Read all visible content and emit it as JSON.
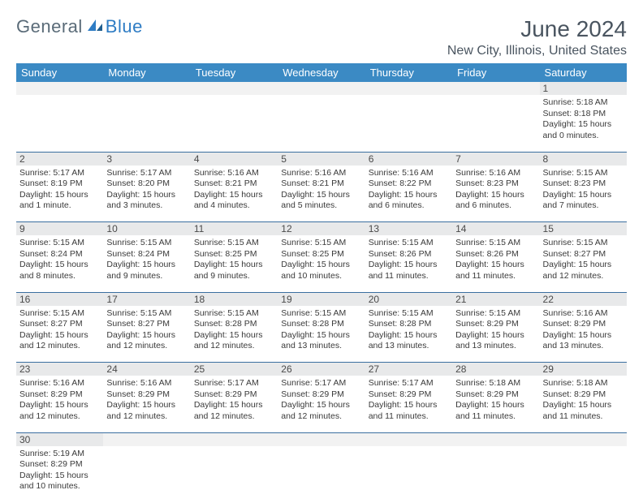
{
  "logo": {
    "text1": "General",
    "text2": "Blue"
  },
  "title": "June 2024",
  "location": "New City, Illinois, United States",
  "colors": {
    "header_bg": "#3b8ac4",
    "header_text": "#ffffff",
    "row_divider": "#3b6fa0",
    "daynum_bg": "#e8e9ea",
    "body_text": "#3a3a3a",
    "title_text": "#4a5560",
    "logo_gray": "#5a6b78",
    "logo_blue": "#2e7cc4"
  },
  "day_headers": [
    "Sunday",
    "Monday",
    "Tuesday",
    "Wednesday",
    "Thursday",
    "Friday",
    "Saturday"
  ],
  "weeks": [
    [
      null,
      null,
      null,
      null,
      null,
      null,
      {
        "n": "1",
        "sr": "Sunrise: 5:18 AM",
        "ss": "Sunset: 8:18 PM",
        "d1": "Daylight: 15 hours",
        "d2": "and 0 minutes."
      }
    ],
    [
      {
        "n": "2",
        "sr": "Sunrise: 5:17 AM",
        "ss": "Sunset: 8:19 PM",
        "d1": "Daylight: 15 hours",
        "d2": "and 1 minute."
      },
      {
        "n": "3",
        "sr": "Sunrise: 5:17 AM",
        "ss": "Sunset: 8:20 PM",
        "d1": "Daylight: 15 hours",
        "d2": "and 3 minutes."
      },
      {
        "n": "4",
        "sr": "Sunrise: 5:16 AM",
        "ss": "Sunset: 8:21 PM",
        "d1": "Daylight: 15 hours",
        "d2": "and 4 minutes."
      },
      {
        "n": "5",
        "sr": "Sunrise: 5:16 AM",
        "ss": "Sunset: 8:21 PM",
        "d1": "Daylight: 15 hours",
        "d2": "and 5 minutes."
      },
      {
        "n": "6",
        "sr": "Sunrise: 5:16 AM",
        "ss": "Sunset: 8:22 PM",
        "d1": "Daylight: 15 hours",
        "d2": "and 6 minutes."
      },
      {
        "n": "7",
        "sr": "Sunrise: 5:16 AM",
        "ss": "Sunset: 8:23 PM",
        "d1": "Daylight: 15 hours",
        "d2": "and 6 minutes."
      },
      {
        "n": "8",
        "sr": "Sunrise: 5:15 AM",
        "ss": "Sunset: 8:23 PM",
        "d1": "Daylight: 15 hours",
        "d2": "and 7 minutes."
      }
    ],
    [
      {
        "n": "9",
        "sr": "Sunrise: 5:15 AM",
        "ss": "Sunset: 8:24 PM",
        "d1": "Daylight: 15 hours",
        "d2": "and 8 minutes."
      },
      {
        "n": "10",
        "sr": "Sunrise: 5:15 AM",
        "ss": "Sunset: 8:24 PM",
        "d1": "Daylight: 15 hours",
        "d2": "and 9 minutes."
      },
      {
        "n": "11",
        "sr": "Sunrise: 5:15 AM",
        "ss": "Sunset: 8:25 PM",
        "d1": "Daylight: 15 hours",
        "d2": "and 9 minutes."
      },
      {
        "n": "12",
        "sr": "Sunrise: 5:15 AM",
        "ss": "Sunset: 8:25 PM",
        "d1": "Daylight: 15 hours",
        "d2": "and 10 minutes."
      },
      {
        "n": "13",
        "sr": "Sunrise: 5:15 AM",
        "ss": "Sunset: 8:26 PM",
        "d1": "Daylight: 15 hours",
        "d2": "and 11 minutes."
      },
      {
        "n": "14",
        "sr": "Sunrise: 5:15 AM",
        "ss": "Sunset: 8:26 PM",
        "d1": "Daylight: 15 hours",
        "d2": "and 11 minutes."
      },
      {
        "n": "15",
        "sr": "Sunrise: 5:15 AM",
        "ss": "Sunset: 8:27 PM",
        "d1": "Daylight: 15 hours",
        "d2": "and 12 minutes."
      }
    ],
    [
      {
        "n": "16",
        "sr": "Sunrise: 5:15 AM",
        "ss": "Sunset: 8:27 PM",
        "d1": "Daylight: 15 hours",
        "d2": "and 12 minutes."
      },
      {
        "n": "17",
        "sr": "Sunrise: 5:15 AM",
        "ss": "Sunset: 8:27 PM",
        "d1": "Daylight: 15 hours",
        "d2": "and 12 minutes."
      },
      {
        "n": "18",
        "sr": "Sunrise: 5:15 AM",
        "ss": "Sunset: 8:28 PM",
        "d1": "Daylight: 15 hours",
        "d2": "and 12 minutes."
      },
      {
        "n": "19",
        "sr": "Sunrise: 5:15 AM",
        "ss": "Sunset: 8:28 PM",
        "d1": "Daylight: 15 hours",
        "d2": "and 13 minutes."
      },
      {
        "n": "20",
        "sr": "Sunrise: 5:15 AM",
        "ss": "Sunset: 8:28 PM",
        "d1": "Daylight: 15 hours",
        "d2": "and 13 minutes."
      },
      {
        "n": "21",
        "sr": "Sunrise: 5:15 AM",
        "ss": "Sunset: 8:29 PM",
        "d1": "Daylight: 15 hours",
        "d2": "and 13 minutes."
      },
      {
        "n": "22",
        "sr": "Sunrise: 5:16 AM",
        "ss": "Sunset: 8:29 PM",
        "d1": "Daylight: 15 hours",
        "d2": "and 13 minutes."
      }
    ],
    [
      {
        "n": "23",
        "sr": "Sunrise: 5:16 AM",
        "ss": "Sunset: 8:29 PM",
        "d1": "Daylight: 15 hours",
        "d2": "and 12 minutes."
      },
      {
        "n": "24",
        "sr": "Sunrise: 5:16 AM",
        "ss": "Sunset: 8:29 PM",
        "d1": "Daylight: 15 hours",
        "d2": "and 12 minutes."
      },
      {
        "n": "25",
        "sr": "Sunrise: 5:17 AM",
        "ss": "Sunset: 8:29 PM",
        "d1": "Daylight: 15 hours",
        "d2": "and 12 minutes."
      },
      {
        "n": "26",
        "sr": "Sunrise: 5:17 AM",
        "ss": "Sunset: 8:29 PM",
        "d1": "Daylight: 15 hours",
        "d2": "and 12 minutes."
      },
      {
        "n": "27",
        "sr": "Sunrise: 5:17 AM",
        "ss": "Sunset: 8:29 PM",
        "d1": "Daylight: 15 hours",
        "d2": "and 11 minutes."
      },
      {
        "n": "28",
        "sr": "Sunrise: 5:18 AM",
        "ss": "Sunset: 8:29 PM",
        "d1": "Daylight: 15 hours",
        "d2": "and 11 minutes."
      },
      {
        "n": "29",
        "sr": "Sunrise: 5:18 AM",
        "ss": "Sunset: 8:29 PM",
        "d1": "Daylight: 15 hours",
        "d2": "and 11 minutes."
      }
    ],
    [
      {
        "n": "30",
        "sr": "Sunrise: 5:19 AM",
        "ss": "Sunset: 8:29 PM",
        "d1": "Daylight: 15 hours",
        "d2": "and 10 minutes."
      },
      null,
      null,
      null,
      null,
      null,
      null
    ]
  ]
}
